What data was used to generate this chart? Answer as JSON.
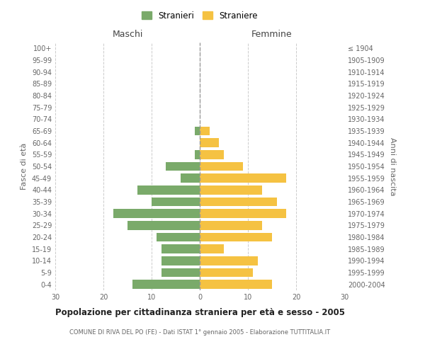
{
  "age_groups": [
    "0-4",
    "5-9",
    "10-14",
    "15-19",
    "20-24",
    "25-29",
    "30-34",
    "35-39",
    "40-44",
    "45-49",
    "50-54",
    "55-59",
    "60-64",
    "65-69",
    "70-74",
    "75-79",
    "80-84",
    "85-89",
    "90-94",
    "95-99",
    "100+"
  ],
  "birth_years": [
    "2000-2004",
    "1995-1999",
    "1990-1994",
    "1985-1989",
    "1980-1984",
    "1975-1979",
    "1970-1974",
    "1965-1969",
    "1960-1964",
    "1955-1959",
    "1950-1954",
    "1945-1949",
    "1940-1944",
    "1935-1939",
    "1930-1934",
    "1925-1929",
    "1920-1924",
    "1915-1919",
    "1910-1914",
    "1905-1909",
    "≤ 1904"
  ],
  "males": [
    14,
    8,
    8,
    8,
    9,
    15,
    18,
    10,
    13,
    4,
    7,
    1,
    0,
    1,
    0,
    0,
    0,
    0,
    0,
    0,
    0
  ],
  "females": [
    15,
    11,
    12,
    5,
    15,
    13,
    18,
    16,
    13,
    18,
    9,
    5,
    4,
    2,
    0,
    0,
    0,
    0,
    0,
    0,
    0
  ],
  "male_color": "#7aaa6a",
  "female_color": "#f5c242",
  "background_color": "#ffffff",
  "grid_color": "#cccccc",
  "title": "Popolazione per cittadinanza straniera per età e sesso - 2005",
  "subtitle": "COMUNE DI RIVA DEL PO (FE) - Dati ISTAT 1° gennaio 2005 - Elaborazione TUTTITALIA.IT",
  "xlabel_left": "Maschi",
  "xlabel_right": "Femmine",
  "ylabel_left": "Fasce di età",
  "ylabel_right": "Anni di nascita",
  "legend_males": "Stranieri",
  "legend_females": "Straniere",
  "xlim": 30,
  "bar_height": 0.75
}
